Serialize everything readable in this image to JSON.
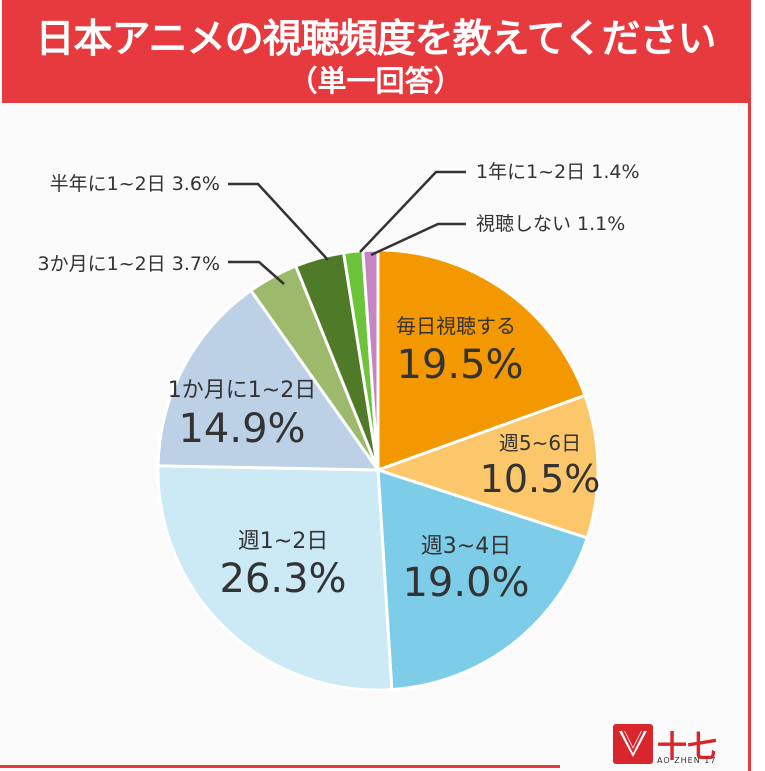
{
  "banner": {
    "title": "日本アニメの視聴頻度を教えてください",
    "subtitle": "（単一回答）",
    "color": "#e63a3f"
  },
  "chart_data": {
    "type": "pie",
    "title": "日本アニメの視聴頻度を教えてください",
    "subtitle": "（単一回答）",
    "start": "12 o'clock, clockwise",
    "slices": [
      {
        "label": "毎日視聴する",
        "value": 19.5,
        "display": "19.5%",
        "color": "#f39800",
        "label_style": "inside"
      },
      {
        "label": "週5~6日",
        "value": 10.5,
        "display": "10.5%",
        "color": "#fbc76a",
        "label_style": "inside"
      },
      {
        "label": "週3~4日",
        "value": 19.0,
        "display": "19.0%",
        "color": "#7dcde9",
        "label_style": "inside"
      },
      {
        "label": "週1~2日",
        "value": 26.3,
        "display": "26.3%",
        "color": "#cce9f6",
        "label_style": "inside"
      },
      {
        "label": "1か月に1~2日",
        "value": 14.9,
        "display": "14.9%",
        "color": "#bcd0e6",
        "label_style": "inside"
      },
      {
        "label": "3か月に1~2日",
        "value": 3.7,
        "display": "3.7%",
        "color": "#9cb96c",
        "label_style": "callout"
      },
      {
        "label": "半年に1~2日",
        "value": 3.6,
        "display": "3.6%",
        "color": "#4f7a28",
        "label_style": "callout"
      },
      {
        "label": "1年に1~2日",
        "value": 1.4,
        "display": "1.4%",
        "color": "#6bc43a",
        "label_style": "callout"
      },
      {
        "label": "視聴しない",
        "value": 1.1,
        "display": "1.1%",
        "color": "#c585c4",
        "label_style": "callout"
      }
    ]
  },
  "logo": {
    "name": "十七",
    "sub": "AO ZHEN 17"
  }
}
